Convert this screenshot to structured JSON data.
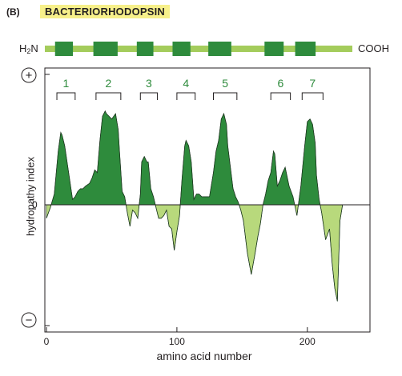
{
  "panel_label": "(B)",
  "title": "BACTERIORHODOPSIN",
  "topology": {
    "n_terminus": "H",
    "n_terminus_sub": "2",
    "n_terminus_tail": "N",
    "c_terminus": "COOH",
    "helix_residue_ranges": [
      [
        8,
        22
      ],
      [
        38,
        57
      ],
      [
        72,
        85
      ],
      [
        100,
        114
      ],
      [
        128,
        146
      ],
      [
        172,
        187
      ],
      [
        196,
        212
      ]
    ]
  },
  "colors": {
    "helix": "#2e8b3c",
    "loop": "#a4cc5c",
    "hydrophobic_fill": "#2e8b3c",
    "hydrophilic_fill": "#b8d97c",
    "bracket_label": "#2e8b3c",
    "title_highlight": "#f7f08a"
  },
  "chart_data": {
    "type": "area",
    "title": "BACTERIORHODOPSIN",
    "xlabel": "amino acid number",
    "ylabel": "hydropathy index",
    "xlim": [
      0,
      248
    ],
    "ylim": [
      -3.8,
      3.8
    ],
    "x_ticks": [
      "0",
      "100",
      "200"
    ],
    "y_ticks": [
      "0"
    ],
    "y_extremes": {
      "positive": "+",
      "negative": "−"
    },
    "helix_brackets": [
      {
        "label": "1",
        "start": 8,
        "end": 22
      },
      {
        "label": "2",
        "start": 38,
        "end": 57
      },
      {
        "label": "3",
        "start": 72,
        "end": 85
      },
      {
        "label": "4",
        "start": 100,
        "end": 114
      },
      {
        "label": "5",
        "start": 128,
        "end": 146
      },
      {
        "label": "6",
        "start": 172,
        "end": 187
      },
      {
        "label": "7",
        "start": 196,
        "end": 212
      }
    ],
    "series": [
      {
        "x": [
          0,
          3,
          6,
          9,
          11,
          12,
          14,
          17,
          20,
          22,
          24,
          26,
          28,
          30,
          33,
          35,
          37,
          39,
          41,
          43,
          45,
          46,
          48,
          50,
          53,
          55,
          56,
          58,
          60,
          62,
          64,
          66,
          68,
          70,
          72,
          73,
          75,
          77,
          78,
          80,
          82,
          84,
          86,
          88,
          90,
          92,
          94,
          96,
          98,
          100,
          102,
          104,
          106,
          107,
          109,
          111,
          113,
          115,
          117,
          119,
          122,
          125,
          128,
          130,
          132,
          134,
          136,
          138,
          139,
          141,
          143,
          145,
          147,
          149,
          151,
          154,
          157,
          160,
          162,
          164,
          166,
          168,
          170,
          172,
          174,
          175,
          177,
          179,
          181,
          183,
          186,
          189,
          192,
          195,
          196,
          198,
          200,
          202,
          204,
          206,
          207,
          209,
          211,
          214,
          217,
          219,
          221,
          223,
          225,
          227
        ],
        "values": [
          -0.5,
          -0.1,
          0.4,
          2.0,
          2.7,
          2.6,
          2.2,
          1.2,
          0.2,
          0.3,
          0.5,
          0.6,
          0.6,
          0.7,
          0.8,
          1.0,
          1.3,
          1.2,
          2.4,
          3.3,
          3.5,
          3.4,
          3.3,
          3.2,
          3.4,
          2.8,
          2.0,
          0.5,
          0.3,
          -0.3,
          -0.8,
          -0.2,
          -0.3,
          -0.5,
          0.4,
          1.6,
          1.8,
          1.6,
          1.6,
          0.6,
          0.3,
          -0.1,
          -0.5,
          -0.5,
          -0.4,
          -0.2,
          -0.8,
          -0.9,
          -1.7,
          -1.0,
          -0.4,
          1.0,
          2.2,
          2.4,
          2.2,
          1.6,
          0.2,
          0.4,
          0.4,
          0.3,
          0.3,
          0.3,
          1.2,
          2.0,
          2.4,
          3.2,
          3.4,
          3.0,
          2.2,
          1.4,
          0.6,
          0.3,
          0.1,
          -0.2,
          -0.6,
          -1.8,
          -2.6,
          -1.8,
          -1.2,
          -0.7,
          0.0,
          0.4,
          0.9,
          1.2,
          2.0,
          1.9,
          0.7,
          0.9,
          1.2,
          1.4,
          0.7,
          0.3,
          -0.4,
          0.7,
          1.2,
          2.2,
          3.1,
          3.2,
          3.0,
          2.3,
          1.1,
          0.2,
          -0.3,
          -1.3,
          -0.9,
          -2.2,
          -3.1,
          -3.6,
          -0.6,
          0.0
        ]
      }
    ]
  }
}
